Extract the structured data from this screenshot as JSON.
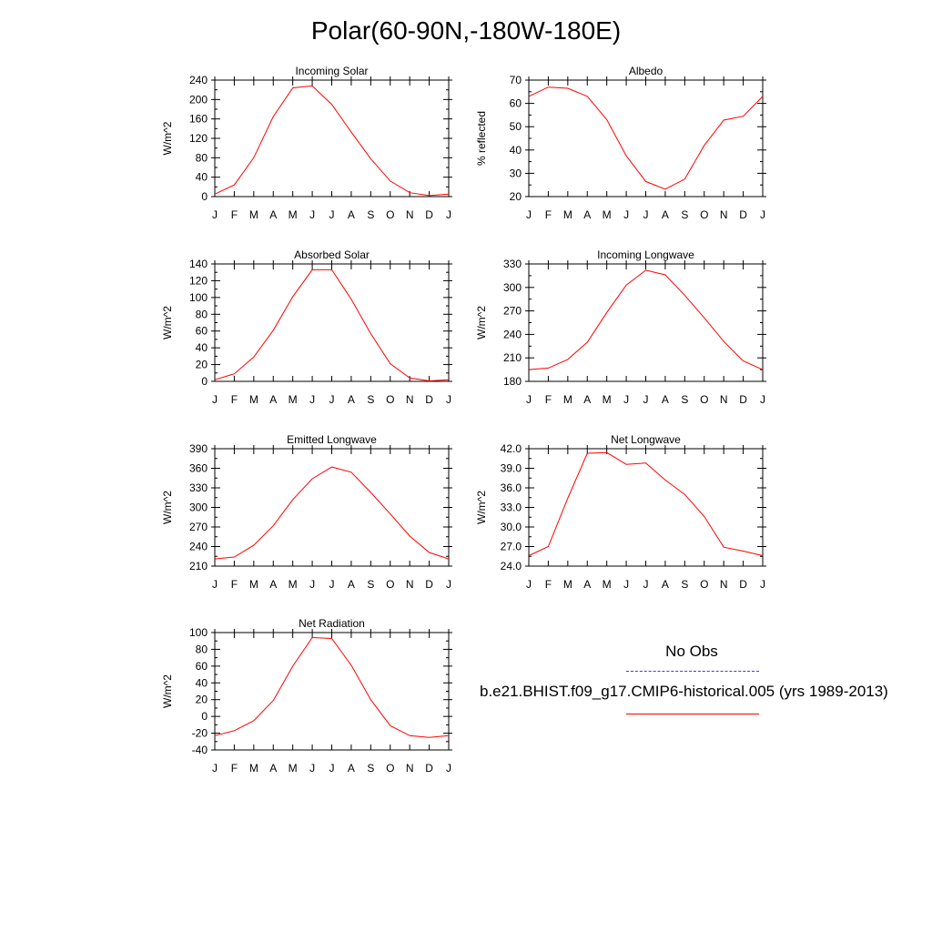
{
  "title": "Polar(60-90N,-180W-180E)",
  "colors": {
    "model": "#ff0000",
    "obs": "#3b3bd8",
    "axis": "#000000"
  },
  "legend": {
    "obs_label": "No Obs",
    "model_label": "b.e21.BHIST.f09_g17.CMIP6-historical.005 (yrs 1989-2013)"
  },
  "chart_data": [
    {
      "type": "line",
      "title": "Incoming Solar",
      "ylabel": "W/m^2",
      "xlabel": "",
      "categories": [
        "J",
        "F",
        "M",
        "A",
        "M",
        "J",
        "J",
        "A",
        "S",
        "O",
        "N",
        "D",
        "J"
      ],
      "ylim": [
        0,
        240
      ],
      "yticks": [
        "0",
        "40",
        "80",
        "120",
        "160",
        "200",
        "240"
      ],
      "series": [
        {
          "values": [
            5,
            24,
            80,
            165,
            224,
            228,
            190,
            133,
            78,
            32,
            8,
            2,
            5
          ]
        }
      ]
    },
    {
      "type": "line",
      "title": "Albedo",
      "ylabel": "% reflected",
      "xlabel": "",
      "categories": [
        "J",
        "F",
        "M",
        "A",
        "M",
        "J",
        "J",
        "A",
        "S",
        "O",
        "N",
        "D",
        "J"
      ],
      "ylim": [
        20,
        70
      ],
      "yticks": [
        "20",
        "30",
        "40",
        "50",
        "60",
        "70"
      ],
      "series": [
        {
          "values": [
            63,
            67,
            66.5,
            63,
            53,
            37.5,
            26.5,
            23.2,
            27.5,
            42,
            52.8,
            54.5,
            63
          ]
        }
      ]
    },
    {
      "type": "line",
      "title": "Absorbed Solar",
      "ylabel": "W/m^2",
      "xlabel": "",
      "categories": [
        "J",
        "F",
        "M",
        "A",
        "M",
        "J",
        "J",
        "A",
        "S",
        "O",
        "N",
        "D",
        "J"
      ],
      "ylim": [
        0,
        140
      ],
      "yticks": [
        "0",
        "20",
        "40",
        "60",
        "80",
        "100",
        "120",
        "140"
      ],
      "series": [
        {
          "values": [
            2,
            9,
            29,
            61,
            101,
            133,
            133,
            98,
            57,
            21,
            4,
            0.5,
            2
          ]
        }
      ]
    },
    {
      "type": "line",
      "title": "Incoming Longwave",
      "ylabel": "W/m^2",
      "xlabel": "",
      "categories": [
        "J",
        "F",
        "M",
        "A",
        "M",
        "J",
        "J",
        "A",
        "S",
        "O",
        "N",
        "D",
        "J"
      ],
      "ylim": [
        180,
        330
      ],
      "yticks": [
        "180",
        "210",
        "240",
        "270",
        "300",
        "330"
      ],
      "series": [
        {
          "values": [
            195,
            197,
            208,
            230,
            268,
            303,
            322,
            316,
            290,
            261,
            231,
            206,
            195
          ]
        }
      ]
    },
    {
      "type": "line",
      "title": "Emitted Longwave",
      "ylabel": "W/m^2",
      "xlabel": "",
      "categories": [
        "J",
        "F",
        "M",
        "A",
        "M",
        "J",
        "J",
        "A",
        "S",
        "O",
        "N",
        "D",
        "J"
      ],
      "ylim": [
        210,
        390
      ],
      "yticks": [
        "210",
        "240",
        "270",
        "300",
        "330",
        "360",
        "390"
      ],
      "series": [
        {
          "values": [
            221,
            224,
            242,
            272,
            312,
            344,
            362,
            354,
            323,
            290,
            256,
            231,
            221
          ]
        }
      ]
    },
    {
      "type": "line",
      "title": "Net Longwave",
      "ylabel": "W/m^2",
      "xlabel": "",
      "categories": [
        "J",
        "F",
        "M",
        "A",
        "M",
        "J",
        "J",
        "A",
        "S",
        "O",
        "N",
        "D",
        "J"
      ],
      "ylim": [
        24.0,
        42.0
      ],
      "yticks": [
        "24.0",
        "27.0",
        "30.0",
        "33.0",
        "36.0",
        "39.0",
        "42.0"
      ],
      "series": [
        {
          "values": [
            25.6,
            27.0,
            34.4,
            41.3,
            41.4,
            39.6,
            39.8,
            37.2,
            35.0,
            31.6,
            26.9,
            26.3,
            25.6
          ]
        }
      ]
    },
    {
      "type": "line",
      "title": "Net Radiation",
      "ylabel": "W/m^2",
      "xlabel": "",
      "categories": [
        "J",
        "F",
        "M",
        "A",
        "M",
        "J",
        "J",
        "A",
        "S",
        "O",
        "N",
        "D",
        "J"
      ],
      "ylim": [
        -40,
        100
      ],
      "yticks": [
        "-40",
        "-20",
        "0",
        "20",
        "40",
        "60",
        "80",
        "100"
      ],
      "series": [
        {
          "values": [
            -23,
            -17,
            -5,
            19,
            60,
            94,
            93,
            61,
            20,
            -11,
            -23,
            -25,
            -23
          ]
        }
      ]
    }
  ]
}
